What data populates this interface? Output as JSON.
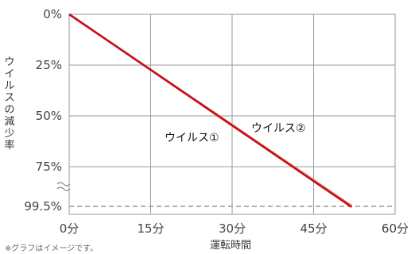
{
  "chart_data": {
    "type": "line",
    "xlabel": "運転時間",
    "ylabel": "ウイルスの減少率",
    "x_ticks": [
      "0分",
      "15分",
      "30分",
      "45分",
      "60分"
    ],
    "y_ticks": [
      "0%",
      "25%",
      "50%",
      "75%",
      "99.5%"
    ],
    "xlim": [
      0,
      60
    ],
    "y_scale_note": "axis break between 75% and 99.5%",
    "grid": true,
    "series": [
      {
        "name": "ウイルス①",
        "color": "#c0121c",
        "x": [
          0,
          52
        ],
        "y": [
          0,
          99.9
        ]
      },
      {
        "name": "ウイルス②",
        "color": "#e8806a",
        "x": [
          0,
          52
        ],
        "y": [
          0,
          99.2
        ]
      }
    ],
    "reference_line": {
      "y": 99.5,
      "style": "dashed",
      "color": "#999999"
    },
    "footnote": "※グラフはイメージです。"
  }
}
